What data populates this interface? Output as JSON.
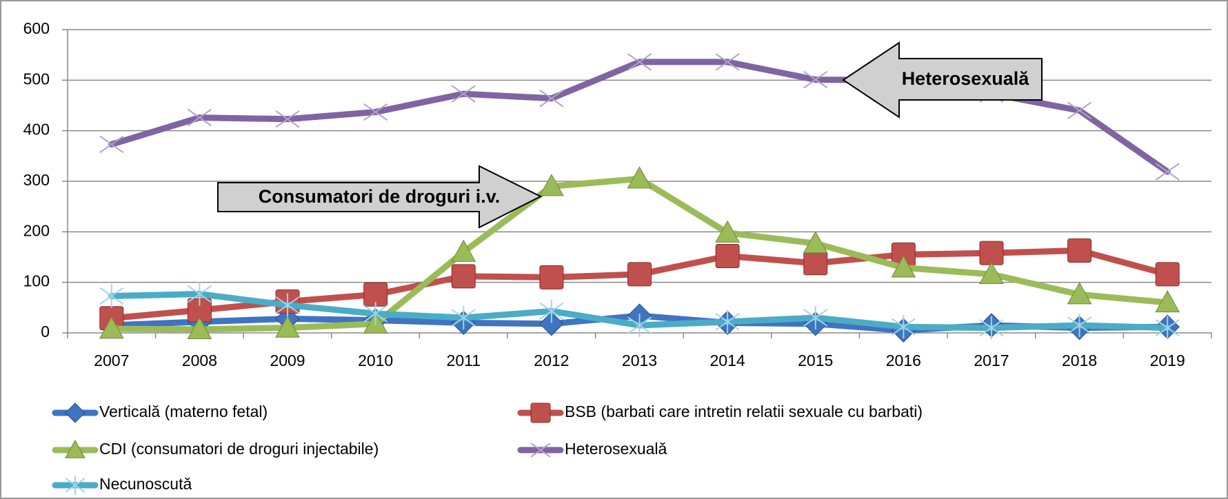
{
  "chart_data": {
    "type": "line",
    "categories": [
      "2007",
      "2008",
      "2009",
      "2010",
      "2011",
      "2012",
      "2013",
      "2014",
      "2015",
      "2016",
      "2017",
      "2018",
      "2019"
    ],
    "ylim": [
      0,
      600
    ],
    "yticks": [
      0,
      100,
      200,
      300,
      400,
      500,
      600
    ],
    "grid": true,
    "series": [
      {
        "name": "Verticală (materno fetal)",
        "color": "#3f74c2",
        "marker": "diamond",
        "values": [
          15,
          22,
          28,
          25,
          20,
          18,
          34,
          20,
          18,
          5,
          15,
          10,
          12
        ]
      },
      {
        "name": "BSB (barbati care intretin relatii sexuale cu barbati)",
        "color": "#c0504d",
        "marker": "square",
        "values": [
          29,
          45,
          62,
          76,
          112,
          110,
          116,
          152,
          138,
          155,
          158,
          163,
          116
        ]
      },
      {
        "name": "CDI (consumatori de droguri injectabile)",
        "color": "#9bbb59",
        "marker": "triangle",
        "values": [
          8,
          7,
          10,
          18,
          160,
          290,
          305,
          198,
          177,
          129,
          116,
          76,
          60
        ]
      },
      {
        "name": "Heterosexuală",
        "color": "#8064a2",
        "marker": "x",
        "values": [
          373,
          426,
          423,
          437,
          473,
          464,
          536,
          536,
          501,
          500,
          473,
          440,
          319
        ]
      },
      {
        "name": "Necunoscută",
        "color": "#4bacc6",
        "marker": "star",
        "values": [
          73,
          77,
          55,
          38,
          30,
          43,
          15,
          22,
          30,
          12,
          10,
          15,
          10
        ]
      }
    ],
    "annotations": [
      "Heterosexuală",
      "Consumatori de droguri i.v."
    ]
  }
}
